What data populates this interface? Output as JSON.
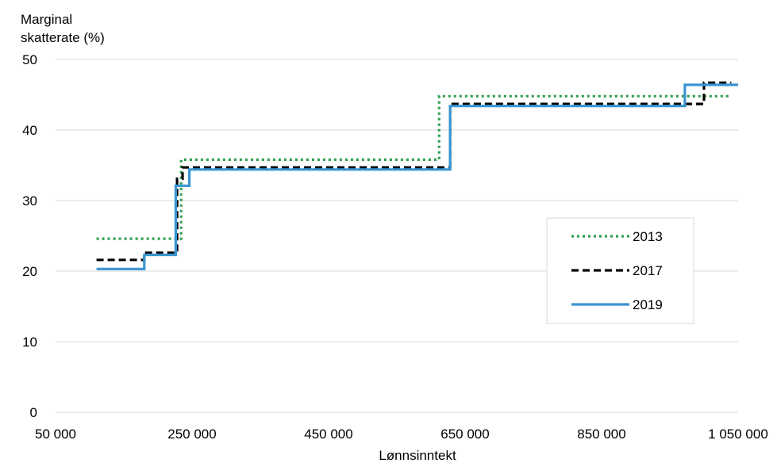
{
  "chart_data": {
    "type": "line",
    "step": true,
    "ylabel_lines": [
      "Marginal",
      "skatterate (%)"
    ],
    "xlabel": "Lønnsinntekt",
    "xlim": [
      50000,
      1050000
    ],
    "ylim": [
      0,
      50
    ],
    "x_ticks": [
      50000,
      250000,
      450000,
      650000,
      850000,
      1050000
    ],
    "x_tick_labels": [
      "50 000",
      "250 000",
      "450 000",
      "650 000",
      "850 000",
      "1 050 000"
    ],
    "y_ticks": [
      0,
      10,
      20,
      30,
      40,
      50
    ],
    "y_tick_labels": [
      "0",
      "10",
      "20",
      "30",
      "40",
      "50"
    ],
    "grid": "horizontal",
    "legend_position": "right",
    "series": [
      {
        "name": "2013",
        "color": "#2e9e4f",
        "style": "dotted",
        "points": [
          [
            110000,
            24.6
          ],
          [
            234000,
            24.6
          ],
          [
            234000,
            35.8
          ],
          [
            612000,
            35.8
          ],
          [
            612000,
            44.8
          ],
          [
            1040000,
            44.8
          ]
        ]
      },
      {
        "name": "2017",
        "color": "#000000",
        "style": "dashed",
        "points": [
          [
            110000,
            21.6
          ],
          [
            180000,
            21.6
          ],
          [
            180000,
            22.6
          ],
          [
            228000,
            22.6
          ],
          [
            228000,
            33.1
          ],
          [
            236000,
            33.1
          ],
          [
            236000,
            34.7
          ],
          [
            628000,
            34.7
          ],
          [
            628000,
            43.7
          ],
          [
            1000000,
            43.7
          ],
          [
            1000000,
            46.7
          ],
          [
            1040000,
            46.7
          ]
        ]
      },
      {
        "name": "2019",
        "color": "#3a95d1",
        "style": "solid",
        "points": [
          [
            110000,
            20.3
          ],
          [
            180000,
            20.3
          ],
          [
            180000,
            22.3
          ],
          [
            226000,
            22.3
          ],
          [
            226000,
            32.1
          ],
          [
            246000,
            32.1
          ],
          [
            246000,
            34.4
          ],
          [
            628000,
            34.4
          ],
          [
            628000,
            43.4
          ],
          [
            972000,
            43.4
          ],
          [
            972000,
            46.4
          ],
          [
            1050000,
            46.4
          ]
        ]
      }
    ]
  }
}
